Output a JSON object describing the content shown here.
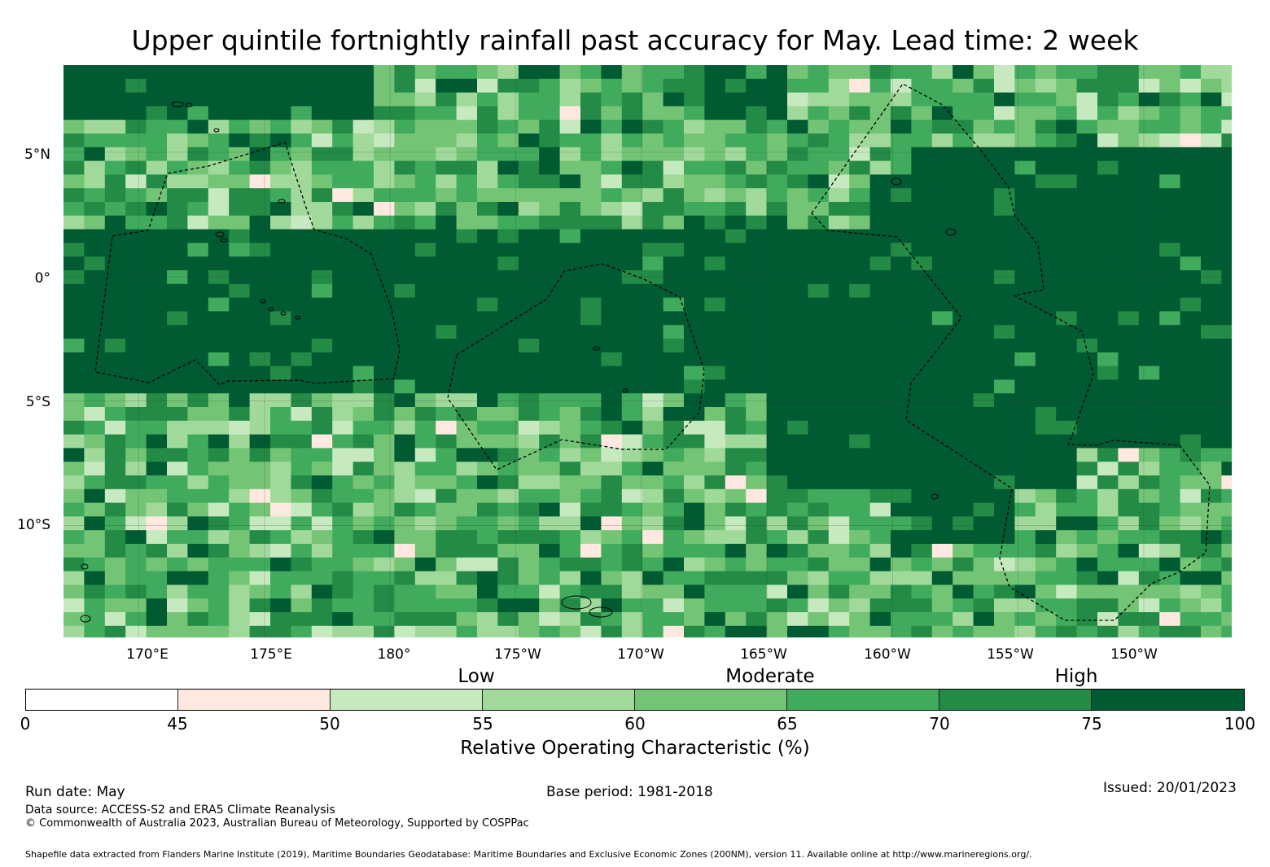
{
  "title": "Upper quintile fortnightly rainfall past accuracy for May. Lead time: 2 week",
  "map": {
    "lon_range": [
      167,
      213.5
    ],
    "lat_range": [
      -14.5,
      8.5
    ],
    "lat_labels": [
      {
        "value": 5,
        "label": "5°N"
      },
      {
        "value": 0,
        "label": "0°"
      },
      {
        "value": -5,
        "label": "5°S"
      },
      {
        "value": -10,
        "label": "10°S"
      }
    ],
    "lon_labels": [
      {
        "value": 170,
        "label": "170°E"
      },
      {
        "value": 175,
        "label": "175°E"
      },
      {
        "value": 180,
        "label": "180°"
      },
      {
        "value": 185,
        "label": "175°W"
      },
      {
        "value": 190,
        "label": "170°W"
      },
      {
        "value": 195,
        "label": "165°W"
      },
      {
        "value": 200,
        "label": "160°W"
      },
      {
        "value": 205,
        "label": "155°W"
      },
      {
        "value": 210,
        "label": "150°W"
      }
    ]
  },
  "legend": {
    "categories": [
      "Low",
      "Moderate",
      "High"
    ],
    "ticks": [
      "0",
      "45",
      "50",
      "55",
      "60",
      "65",
      "70",
      "75",
      "100"
    ],
    "bins": [
      {
        "from": 0,
        "to": 45,
        "color": "#ffffff"
      },
      {
        "from": 45,
        "to": 50,
        "color": "#fee8df"
      },
      {
        "from": 50,
        "to": 55,
        "color": "#c7e9c0"
      },
      {
        "from": 55,
        "to": 60,
        "color": "#a1d99b"
      },
      {
        "from": 60,
        "to": 65,
        "color": "#74c476"
      },
      {
        "from": 65,
        "to": 70,
        "color": "#41ab5d"
      },
      {
        "from": 70,
        "to": 75,
        "color": "#238b45"
      },
      {
        "from": 75,
        "to": 100,
        "color": "#005a32"
      }
    ],
    "title": "Relative Operating Characteristic (%)"
  },
  "footer": {
    "run_date": "Run date: May",
    "base_period": "Base period: 1981-2018",
    "issued": "Issued: 20/01/2023",
    "data_source": "Data source: ACCESS-S2 and ERA5 Climate Reanalysis",
    "copyright": "© Commonwealth of Australia 2023, Australian Bureau of Meteorology, Supported by COSPPac",
    "shapefile": "Shapefile data extracted from Flanders Marine Institute (2019), Maritime Boundaries Geodatabase: Maritime Boundaries and Exclusive Economic Zones (200NM), version 11. Available online at http://www.marineregions.org/."
  }
}
